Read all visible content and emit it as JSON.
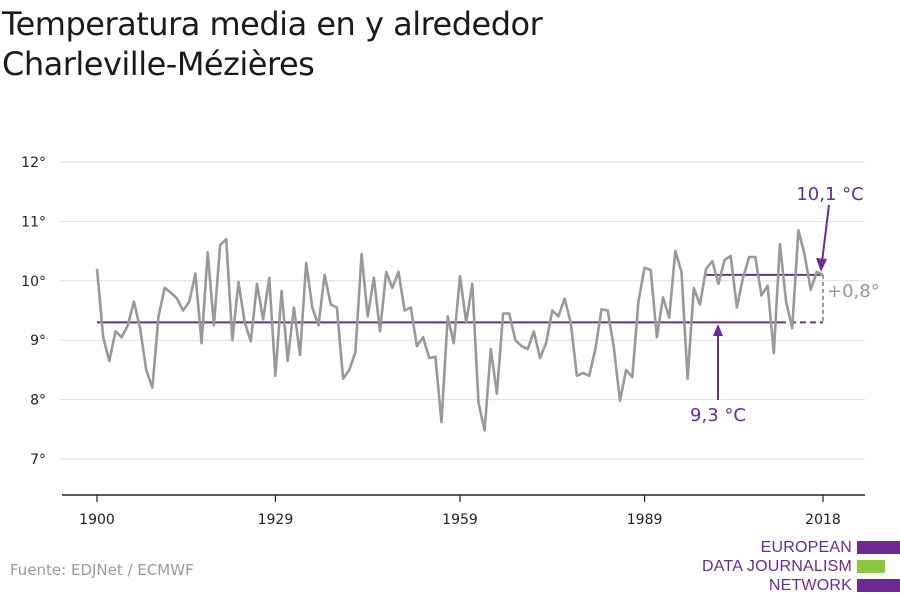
{
  "title_line1": "Temperatura media en y alrededor",
  "title_line2": "Charleville-Mézières",
  "source": "Fuente: EDJNet / ECMWF",
  "logo": {
    "line1": "EUROPEAN",
    "line2": "DATA JOURNALISM",
    "line3": "NETWORK",
    "colors": [
      "#6e2a8e",
      "#8dc63f",
      "#6e2a8e"
    ]
  },
  "colors": {
    "series": "#999999",
    "accent": "#6e2a8e",
    "grid": "#dddddd"
  },
  "chart_data": {
    "type": "line",
    "title": "Temperatura media en y alrededor Charleville-Mézières",
    "xlabel": "",
    "ylabel": "",
    "xlim": [
      1900,
      2018
    ],
    "ylim": [
      7,
      12
    ],
    "xticks": [
      1900,
      1929,
      1959,
      1989,
      2018
    ],
    "xtick_labels": [
      "1900",
      "1929",
      "1959",
      "1989",
      "2018"
    ],
    "yticks": [
      7,
      8,
      9,
      10,
      11,
      12
    ],
    "ytick_labels": [
      "7°",
      "8°",
      "9°",
      "10°",
      "11°",
      "12°"
    ],
    "grid": true,
    "series": [
      {
        "x": [
          1900,
          1901,
          1902,
          1903,
          1904,
          1905,
          1906,
          1907,
          1908,
          1909,
          1910,
          1911,
          1912,
          1913,
          1914,
          1915,
          1916,
          1917,
          1918,
          1919,
          1920,
          1921,
          1922,
          1923,
          1924,
          1925,
          1926,
          1927,
          1928,
          1929,
          1930,
          1931,
          1932,
          1933,
          1934,
          1935,
          1936,
          1937,
          1938,
          1939,
          1940,
          1941,
          1942,
          1943,
          1944,
          1945,
          1946,
          1947,
          1948,
          1949,
          1950,
          1951,
          1952,
          1953,
          1954,
          1955,
          1956,
          1957,
          1958,
          1959,
          1960,
          1961,
          1962,
          1963,
          1964,
          1965,
          1966,
          1967,
          1968,
          1969,
          1970,
          1971,
          1972,
          1973,
          1974,
          1975,
          1976,
          1977,
          1978,
          1979,
          1980,
          1981,
          1982,
          1983,
          1984,
          1985,
          1986,
          1987,
          1988,
          1989,
          1990,
          1991,
          1992,
          1993,
          1994,
          1995,
          1996,
          1997,
          1998,
          1999,
          2000,
          2001,
          2002,
          2003,
          2004,
          2005,
          2006,
          2007,
          2008,
          2009,
          2010,
          2011,
          2012,
          2013,
          2014,
          2015,
          2016,
          2017,
          2018
        ],
        "values": [
          10.2,
          9.05,
          8.65,
          9.15,
          9.05,
          9.25,
          9.65,
          9.2,
          8.5,
          8.2,
          9.4,
          9.88,
          9.8,
          9.7,
          9.5,
          9.65,
          10.12,
          8.95,
          10.48,
          9.25,
          10.6,
          10.7,
          9.0,
          9.98,
          9.3,
          8.98,
          9.95,
          9.35,
          10.05,
          8.4,
          9.83,
          8.65,
          9.55,
          8.75,
          10.3,
          9.55,
          9.25,
          10.1,
          9.6,
          9.55,
          8.35,
          8.5,
          8.8,
          10.45,
          9.4,
          10.05,
          9.15,
          10.15,
          9.88,
          10.15,
          9.5,
          9.55,
          8.9,
          9.05,
          8.7,
          8.72,
          7.62,
          9.4,
          8.95,
          10.08,
          9.3,
          9.95,
          7.95,
          7.48,
          8.85,
          8.1,
          9.45,
          9.45,
          9.0,
          8.9,
          8.85,
          9.15,
          8.7,
          8.95,
          9.5,
          9.4,
          9.7,
          9.3,
          8.4,
          8.45,
          8.4,
          8.85,
          9.52,
          9.5,
          8.88,
          7.98,
          8.5,
          8.38,
          9.65,
          10.22,
          10.18,
          9.05,
          9.72,
          9.38,
          10.5,
          10.15,
          8.35,
          9.88,
          9.6,
          10.2,
          10.33,
          9.95,
          10.35,
          10.42,
          9.55,
          10.05,
          10.4,
          10.4,
          9.75,
          9.92,
          8.78,
          10.62,
          9.65,
          9.2,
          10.85,
          10.45,
          9.85,
          10.15,
          10.1
        ]
      }
    ],
    "reference_lines": [
      {
        "label": "9,3 °C",
        "value": 9.3
      },
      {
        "label": "10,1 °C",
        "value": 10.1
      }
    ],
    "difference_label": "+0,8°"
  }
}
